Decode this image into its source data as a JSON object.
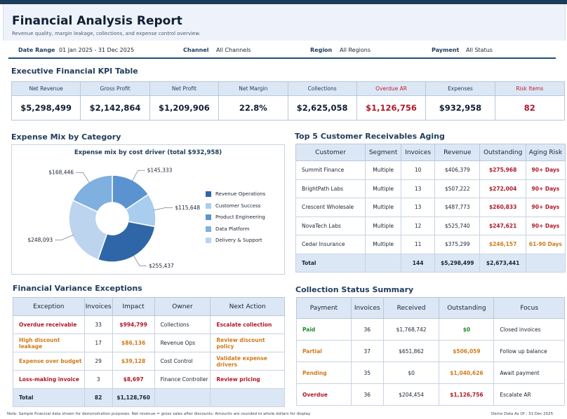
{
  "header": {
    "title": "Financial Analysis Report",
    "subtitle": "Revenue quality, margin leakage, collections, and expense control overview."
  },
  "filters": [
    {
      "label": "Date Range",
      "value": "01 Jan 2025 - 31 Dec 2025"
    },
    {
      "label": "Channel",
      "value": "All Channels"
    },
    {
      "label": "Region",
      "value": "All Regions"
    },
    {
      "label": "Payment",
      "value": "All Status"
    }
  ],
  "kpi": {
    "title": "Executive Financial KPI Table",
    "items": [
      {
        "label": "Net Revenue",
        "value": "$5,298,499",
        "risk": false
      },
      {
        "label": "Gross Profit",
        "value": "$2,142,864",
        "risk": false
      },
      {
        "label": "Net Profit",
        "value": "$1,209,906",
        "risk": false
      },
      {
        "label": "Net Margin",
        "value": "22.8%",
        "risk": false
      },
      {
        "label": "Collections",
        "value": "$2,625,058",
        "risk": false
      },
      {
        "label": "Overdue AR",
        "value": "$1,126,756",
        "risk": true
      },
      {
        "label": "Expenses",
        "value": "$932,958",
        "risk": false
      },
      {
        "label": "Risk Items",
        "value": "82",
        "risk": true
      }
    ]
  },
  "expense": {
    "title": "Expense Mix by Category",
    "caption": "Expense mix by cost driver (total $932,958)"
  },
  "chart_data": {
    "type": "pie",
    "title": "Expense mix by cost driver (total $932,958)",
    "categories": [
      "Revenue Operations",
      "Customer Success",
      "Product Engineering",
      "Data Platform",
      "Delivery & Support"
    ],
    "values": [
      255437,
      115648,
      145333,
      168446,
      248093
    ],
    "labels": [
      "$255,437",
      "$115,648",
      "$145,333",
      "$168,446",
      "$248,093"
    ],
    "colors": [
      "#2f66a8",
      "#a8cdee",
      "#5b93d0",
      "#7fb0e0",
      "#bcd4ee"
    ],
    "legend_position": "right"
  },
  "aging": {
    "title": "Top 5 Customer Receivables Aging",
    "headers": [
      "Customer",
      "Segment",
      "Invoices",
      "Revenue",
      "Outstanding",
      "Aging Risk"
    ],
    "rows": [
      {
        "customer": "Summit Finance",
        "segment": "Multiple",
        "invoices": "10",
        "revenue": "$406,379",
        "outstanding": "$275,968",
        "risk": "90+ Days",
        "level": "red"
      },
      {
        "customer": "BrightPath Labs",
        "segment": "Multiple",
        "invoices": "13",
        "revenue": "$507,222",
        "outstanding": "$272,004",
        "risk": "90+ Days",
        "level": "red"
      },
      {
        "customer": "Crescent Wholesale",
        "segment": "Multiple",
        "invoices": "13",
        "revenue": "$487,773",
        "outstanding": "$260,833",
        "risk": "90+ Days",
        "level": "red"
      },
      {
        "customer": "NovaTech Labs",
        "segment": "Multiple",
        "invoices": "12",
        "revenue": "$525,740",
        "outstanding": "$247,621",
        "risk": "90+ Days",
        "level": "red"
      },
      {
        "customer": "Cedar Insurance",
        "segment": "Multiple",
        "invoices": "11",
        "revenue": "$375,299",
        "outstanding": "$246,157",
        "risk": "61-90 Days",
        "level": "orange"
      }
    ],
    "total": {
      "label": "Total",
      "invoices": "144",
      "revenue": "$5,298,499",
      "outstanding": "$2,673,441"
    }
  },
  "variance": {
    "title": "Financial Variance Exceptions",
    "headers": [
      "Exception",
      "Invoices",
      "Impact",
      "Owner",
      "Next Action"
    ],
    "rows": [
      {
        "exception": "Overdue receivable",
        "invoices": "33",
        "impact": "$994,799",
        "owner": "Collections",
        "action": "Escalate collection",
        "level": "red"
      },
      {
        "exception": "High discount leakage",
        "invoices": "17",
        "impact": "$86,136",
        "owner": "Revenue Ops",
        "action": "Review discount policy",
        "level": "orange"
      },
      {
        "exception": "Expense over budget",
        "invoices": "29",
        "impact": "$39,128",
        "owner": "Cost Control",
        "action": "Validate expense drivers",
        "level": "orange"
      },
      {
        "exception": "Loss-making invoice",
        "invoices": "3",
        "impact": "$8,697",
        "owner": "Finance Controller",
        "action": "Review pricing",
        "level": "red"
      }
    ],
    "total": {
      "label": "Total",
      "invoices": "82",
      "impact": "$1,128,760"
    }
  },
  "collection": {
    "title": "Collection Status Summary",
    "headers": [
      "Payment",
      "Invoices",
      "Received",
      "Outstanding",
      "Focus"
    ],
    "rows": [
      {
        "payment": "Paid",
        "invoices": "36",
        "received": "$1,768,742",
        "outstanding": "$0",
        "focus": "Closed invoices",
        "level": "green"
      },
      {
        "payment": "Partial",
        "invoices": "37",
        "received": "$651,862",
        "outstanding": "$506,059",
        "focus": "Follow up balance",
        "level": "orange"
      },
      {
        "payment": "Pending",
        "invoices": "35",
        "received": "$0",
        "outstanding": "$1,040,626",
        "focus": "Await payment",
        "level": "orange"
      },
      {
        "payment": "Overdue",
        "invoices": "36",
        "received": "$204,454",
        "outstanding": "$1,126,756",
        "focus": "Escalate AR",
        "level": "red"
      }
    ]
  },
  "footer": {
    "note": "Note: Sample financial data shown for demonstration purposes. Net revenue = gross sales after discounts. Amounts are rounded to whole dollars for display.",
    "asof": "Demo Data As Of : 31 Dec 2025"
  }
}
